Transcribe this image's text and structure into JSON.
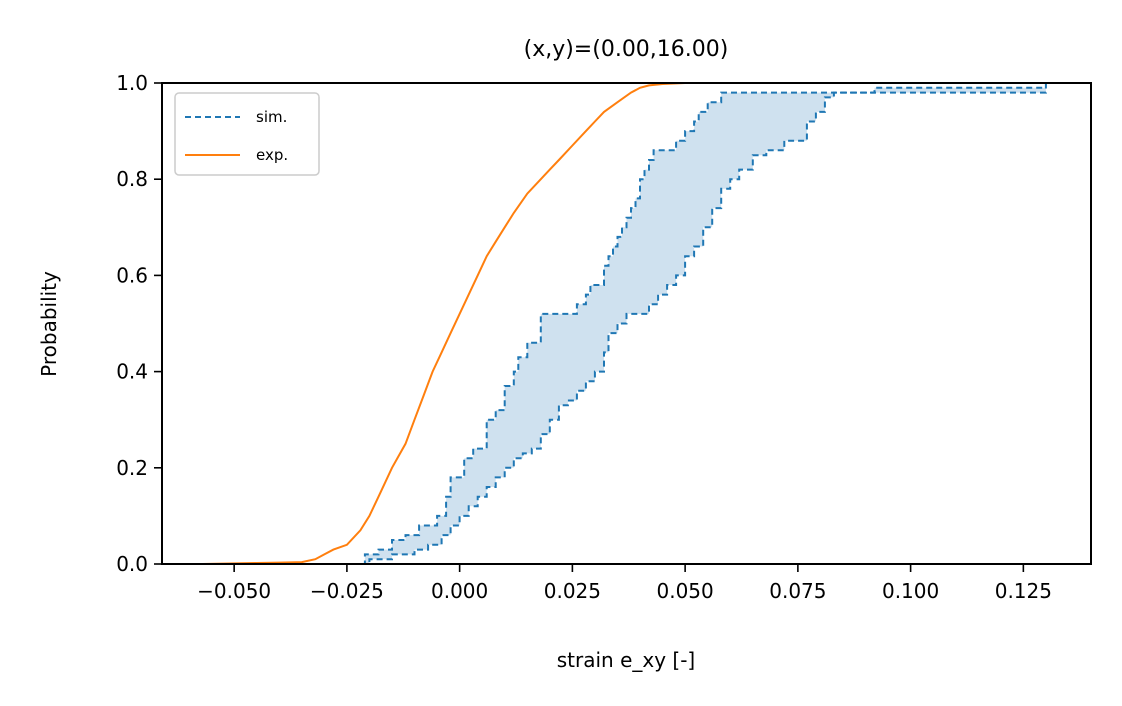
{
  "chart_data": {
    "type": "line",
    "title": "(x,y)=(0.00,16.00)",
    "xlabel": "strain e_xy [-]",
    "ylabel": "Probability",
    "xlim": [
      -0.066,
      0.14
    ],
    "ylim": [
      0.0,
      1.0
    ],
    "xticks": [
      -0.05,
      -0.025,
      0.0,
      0.025,
      0.05,
      0.075,
      0.1,
      0.125
    ],
    "xtick_labels": [
      "−0.050",
      "−0.025",
      "0.000",
      "0.025",
      "0.050",
      "0.075",
      "0.100",
      "0.125"
    ],
    "yticks": [
      0.0,
      0.2,
      0.4,
      0.6,
      0.8,
      1.0
    ],
    "ytick_labels": [
      "0.0",
      "0.2",
      "0.4",
      "0.6",
      "0.8",
      "1.0"
    ],
    "grid": false,
    "legend_position": "top-left",
    "series": [
      {
        "name": "sim.",
        "style": "dashed",
        "color": "#1f77b4",
        "band_fill": "#cfe1ef",
        "upper": {
          "x": [
            -0.026,
            -0.021,
            -0.018,
            -0.015,
            -0.012,
            -0.009,
            -0.005,
            -0.003,
            -0.002,
            0.001,
            0.003,
            0.006,
            0.008,
            0.01,
            0.012,
            0.013,
            0.015,
            0.018,
            0.02,
            0.022,
            0.026,
            0.028,
            0.029,
            0.032,
            0.033,
            0.034,
            0.035,
            0.036,
            0.037,
            0.038,
            0.039,
            0.04,
            0.041,
            0.042,
            0.043,
            0.046,
            0.048,
            0.05,
            0.052,
            0.053,
            0.055,
            0.058,
            0.06,
            0.063,
            0.074,
            0.079,
            0.08,
            0.092,
            0.13
          ],
          "y": [
            0.0,
            0.02,
            0.03,
            0.05,
            0.06,
            0.08,
            0.1,
            0.14,
            0.18,
            0.22,
            0.24,
            0.3,
            0.32,
            0.37,
            0.4,
            0.43,
            0.46,
            0.52,
            0.52,
            0.52,
            0.54,
            0.56,
            0.58,
            0.62,
            0.64,
            0.66,
            0.68,
            0.7,
            0.72,
            0.74,
            0.76,
            0.8,
            0.82,
            0.84,
            0.86,
            0.86,
            0.88,
            0.9,
            0.92,
            0.94,
            0.96,
            0.98,
            0.98,
            0.98,
            0.98,
            0.98,
            0.98,
            0.99,
            0.99
          ]
        },
        "lower": {
          "x": [
            -0.024,
            -0.02,
            -0.015,
            -0.01,
            -0.007,
            -0.004,
            -0.002,
            0.0,
            0.002,
            0.004,
            0.006,
            0.008,
            0.01,
            0.012,
            0.014,
            0.016,
            0.018,
            0.02,
            0.022,
            0.024,
            0.026,
            0.028,
            0.03,
            0.032,
            0.033,
            0.035,
            0.037,
            0.039,
            0.04,
            0.042,
            0.044,
            0.046,
            0.048,
            0.05,
            0.052,
            0.054,
            0.056,
            0.058,
            0.06,
            0.062,
            0.065,
            0.068,
            0.07,
            0.072,
            0.075,
            0.077,
            0.079,
            0.081,
            0.083,
            0.13
          ],
          "y": [
            0.0,
            0.01,
            0.02,
            0.03,
            0.04,
            0.06,
            0.08,
            0.1,
            0.12,
            0.14,
            0.16,
            0.18,
            0.2,
            0.22,
            0.23,
            0.24,
            0.27,
            0.3,
            0.33,
            0.34,
            0.36,
            0.38,
            0.4,
            0.44,
            0.48,
            0.5,
            0.52,
            0.52,
            0.52,
            0.54,
            0.56,
            0.58,
            0.6,
            0.64,
            0.66,
            0.7,
            0.74,
            0.78,
            0.8,
            0.82,
            0.85,
            0.86,
            0.86,
            0.88,
            0.88,
            0.92,
            0.94,
            0.97,
            0.98,
            1.0
          ]
        }
      },
      {
        "name": "exp.",
        "style": "solid",
        "color": "#ff7f0e",
        "x": [
          -0.057,
          -0.045,
          -0.04,
          -0.035,
          -0.032,
          -0.03,
          -0.028,
          -0.025,
          -0.022,
          -0.02,
          -0.018,
          -0.015,
          -0.012,
          -0.01,
          -0.008,
          -0.006,
          -0.004,
          -0.002,
          0.0,
          0.002,
          0.004,
          0.006,
          0.008,
          0.01,
          0.012,
          0.015,
          0.018,
          0.02,
          0.022,
          0.025,
          0.028,
          0.03,
          0.032,
          0.035,
          0.038,
          0.04,
          0.042,
          0.045,
          0.05
        ],
        "y": [
          0.0,
          0.002,
          0.003,
          0.004,
          0.01,
          0.02,
          0.03,
          0.04,
          0.07,
          0.1,
          0.14,
          0.2,
          0.25,
          0.3,
          0.35,
          0.4,
          0.44,
          0.48,
          0.52,
          0.56,
          0.6,
          0.64,
          0.67,
          0.7,
          0.73,
          0.77,
          0.8,
          0.82,
          0.84,
          0.87,
          0.9,
          0.92,
          0.94,
          0.96,
          0.98,
          0.99,
          0.995,
          0.998,
          1.0
        ]
      }
    ]
  }
}
